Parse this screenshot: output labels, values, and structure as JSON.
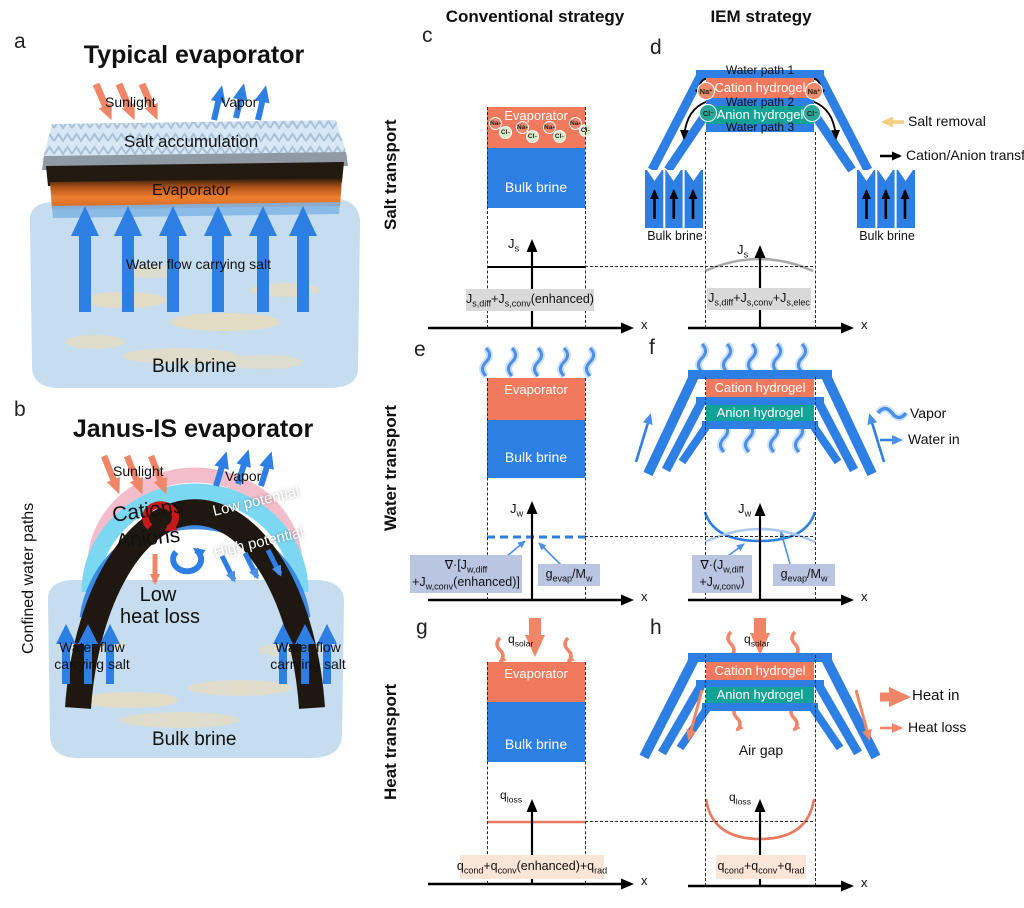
{
  "figure": {
    "columns": {
      "conventional": "Conventional strategy",
      "iem": "IEM strategy"
    },
    "rows": {
      "salt": "Salt transport",
      "water": "Water transport",
      "heat": "Heat transport"
    }
  },
  "ions": {
    "na": [
      "Na",
      "^+"
    ],
    "cl": [
      "Cl",
      "^−"
    ]
  },
  "panel_a": {
    "letter": "a",
    "title": "Typical evaporator",
    "sunlight": "Sunlight",
    "vapor": "Vapor",
    "salt_accumulation": "Salt accumulation",
    "evaporator": "Evaporator",
    "water_flow": "Water flow carrying salt",
    "bulk_brine": "Bulk brine"
  },
  "panel_b": {
    "letter": "b",
    "title": "Janus-IS evaporator",
    "side_label": "Confined water paths",
    "sunlight": "Sunlight",
    "vapor": "Vapor",
    "cations": "Cations",
    "anions": "Anions",
    "low_potential": "Low potential",
    "high_potential": "High potential",
    "low_heat_loss_line1": "Low",
    "low_heat_loss_line2": "heat loss",
    "water_flow_line1": "Water flow",
    "water_flow_line2": "carrying salt",
    "bulk_brine": "Bulk brine"
  },
  "panel_c": {
    "letter": "c",
    "evaporator": "Evaporator",
    "bulk_brine": "Bulk brine",
    "y_axis": [
      "J",
      "_s"
    ],
    "x_axis": "x",
    "flux": [
      "J",
      "_s,diff",
      "+J",
      "_s,conv",
      "(enhanced)"
    ]
  },
  "panel_d": {
    "letter": "d",
    "water_path_1": "Water path 1",
    "cation_hydrogel": "Cation hydrogel",
    "water_path_2": "Water path 2",
    "anion_hydrogel": "Anion hydrogel",
    "water_path_3": "Water path 3",
    "bulk_brine_left": "Bulk brine",
    "bulk_brine_right": "Bulk brine",
    "y_axis": [
      "J",
      "_s"
    ],
    "x_axis": "x",
    "flux": [
      "J",
      "_s,diff",
      "+J",
      "_s,conv",
      "+J",
      "_s,elec"
    ],
    "legend_salt_removal": "Salt removal",
    "legend_ion_transfer": "Cation/Anion transfer"
  },
  "panel_e": {
    "letter": "e",
    "evaporator": "Evaporator",
    "bulk_brine": "Bulk brine",
    "y_axis": [
      "J",
      "_w"
    ],
    "x_axis": "x",
    "box1_line1": [
      "∇·[J",
      "_w,diff"
    ],
    "box1_line2": [
      "+J",
      "_w,conv",
      "(enhanced)]"
    ],
    "box2": [
      "g",
      "_evap",
      "/M",
      "_w"
    ]
  },
  "panel_f": {
    "letter": "f",
    "cation_hydrogel": "Cation hydrogel",
    "anion_hydrogel": "Anion hydrogel",
    "y_axis": [
      "J",
      "_w"
    ],
    "x_axis": "x",
    "box1_line1": [
      "∇·(J",
      "_w,diff"
    ],
    "box1_line2": [
      "+J",
      "_w,conv",
      ")"
    ],
    "box2": [
      "g",
      "_evap",
      "/M",
      "_w"
    ],
    "legend_vapor": "Vapor",
    "legend_water_in": "Water in"
  },
  "panel_g": {
    "letter": "g",
    "q_solar": [
      "q",
      "_solar"
    ],
    "evaporator": "Evaporator",
    "bulk_brine": "Bulk brine",
    "y_axis": [
      "q",
      "_loss"
    ],
    "x_axis": "x",
    "flux": [
      "q",
      "_cond",
      "+q",
      "_conv",
      "(enhanced)+q",
      "_rad"
    ]
  },
  "panel_h": {
    "letter": "h",
    "q_solar": [
      "q",
      "_solar"
    ],
    "cation_hydrogel": "Cation hydrogel",
    "anion_hydrogel": "Anion hydrogel",
    "air_gap": "Air gap",
    "y_axis": [
      "q",
      "_loss"
    ],
    "x_axis": "x",
    "flux": [
      "q",
      "_cond",
      "+q",
      "_conv",
      "+q",
      "_rad"
    ],
    "legend_heat_in": "Heat in",
    "legend_heat_loss": "Heat loss"
  },
  "colors": {
    "salmon": "#F0795E",
    "blue": "#2E7FE3",
    "teal": "#12A296",
    "yellow": "#F2CE7E",
    "gray_box": "#D9D9D9",
    "blue_box": "#B9C5E1",
    "peach_box": "#FBE5D7",
    "gray_curve": "#A9A9A9",
    "salmon_curve": "#E87B60",
    "light_blue_curve": "#A9C9EE"
  }
}
